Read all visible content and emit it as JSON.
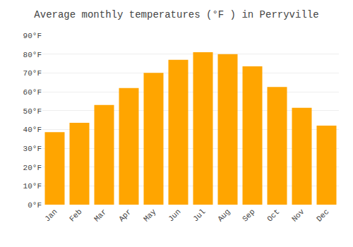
{
  "chart_data": {
    "type": "bar",
    "title": "Average monthly temperatures (°F ) in Perryville",
    "categories": [
      "Jan",
      "Feb",
      "Mar",
      "Apr",
      "May",
      "Jun",
      "Jul",
      "Aug",
      "Sep",
      "Oct",
      "Nov",
      "Dec"
    ],
    "values": [
      38.5,
      43.5,
      53.0,
      62.0,
      70.0,
      77.0,
      81.0,
      80.0,
      73.5,
      62.5,
      51.5,
      42.0
    ],
    "color": "#FFA500",
    "ylim": [
      0,
      90
    ],
    "yticks": [
      {
        "value": 0,
        "label": "0°F"
      },
      {
        "value": 10,
        "label": "10°F"
      },
      {
        "value": 20,
        "label": "20°F"
      },
      {
        "value": 30,
        "label": "30°F"
      },
      {
        "value": 40,
        "label": "40°F"
      },
      {
        "value": 50,
        "label": "50°F"
      },
      {
        "value": 60,
        "label": "60°F"
      },
      {
        "value": 70,
        "label": "70°F"
      },
      {
        "value": 80,
        "label": "80°F"
      },
      {
        "value": 90,
        "label": "90°F"
      }
    ],
    "grid": true
  }
}
